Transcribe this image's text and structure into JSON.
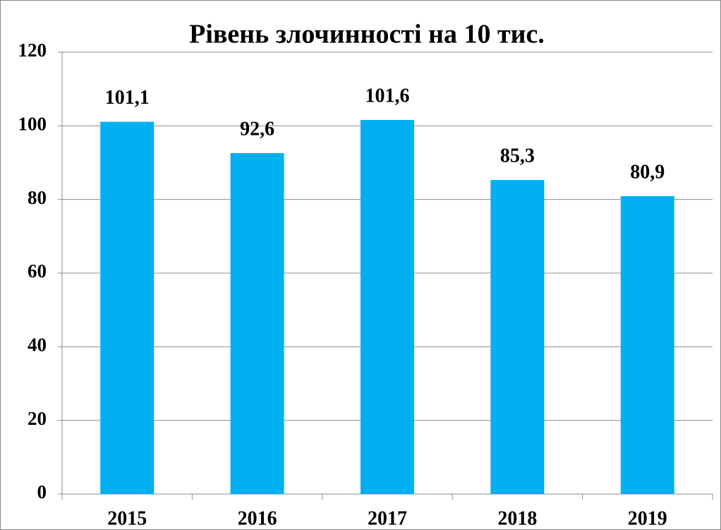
{
  "chart_data": {
    "type": "bar",
    "title": "Рівень злочинності на 10 тис.",
    "categories": [
      "2015",
      "2016",
      "2017",
      "2018",
      "2019"
    ],
    "values": [
      101.1,
      92.6,
      101.6,
      85.3,
      80.9
    ],
    "value_labels": [
      "101,1",
      "92,6",
      "101,6",
      "85,3",
      "80,9"
    ],
    "color": "#00b0f0",
    "ylim": [
      0,
      120
    ],
    "yticks": [
      0,
      20,
      40,
      60,
      80,
      100,
      120
    ],
    "grid": true
  }
}
